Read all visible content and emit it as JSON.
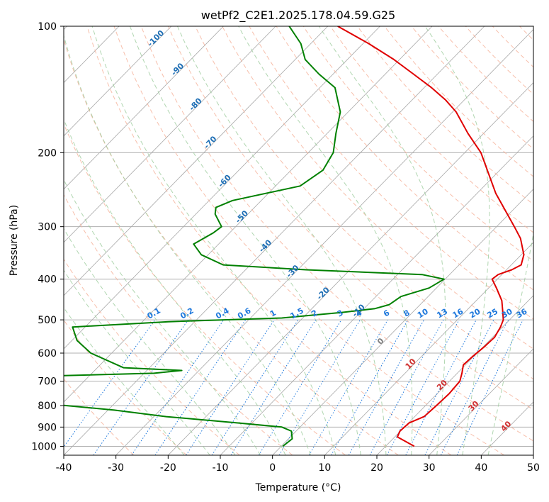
{
  "chart_data": {
    "type": "line",
    "title": "wetPf2_C2E1.2025.178.04.59.G25",
    "xlabel": "Temperature (°C)",
    "ylabel": "Pressure (hPa)",
    "xlim": [
      -40,
      50
    ],
    "ylim": [
      1050,
      100
    ],
    "y_scale": "log",
    "xticks": [
      -40,
      -30,
      -20,
      -10,
      0,
      10,
      20,
      30,
      40,
      50
    ],
    "yticks": [
      100,
      200,
      300,
      400,
      500,
      600,
      700,
      800,
      900,
      1000
    ],
    "grid": true,
    "skew": true,
    "background_lines": {
      "isotherm_labels": [
        {
          "label": "-100",
          "p": 108
        },
        {
          "label": "-90",
          "p": 128
        },
        {
          "label": "-80",
          "p": 155
        },
        {
          "label": "-70",
          "p": 191
        },
        {
          "label": "-60",
          "p": 236
        },
        {
          "label": "-50",
          "p": 287
        },
        {
          "label": "-40",
          "p": 337
        },
        {
          "label": "-30",
          "p": 387
        },
        {
          "label": "-20",
          "p": 437
        },
        {
          "label": "-10",
          "p": 480
        },
        {
          "label": "0",
          "p": 568
        },
        {
          "label": "10",
          "p": 643
        },
        {
          "label": "20",
          "p": 722
        },
        {
          "label": "30",
          "p": 810
        },
        {
          "label": "40",
          "p": 905
        }
      ],
      "mixing_ratio_labels": [
        "0.1",
        "0.2",
        "0.4",
        "0.6",
        "1",
        "1.5",
        "2",
        "3",
        "4",
        "6",
        "8",
        "10",
        "13",
        "16",
        "20",
        "25",
        "30",
        "36"
      ],
      "mixing_ratio_label_pressure": 500
    },
    "series": [
      {
        "color": "#e00000",
        "points": [
          {
            "p": 1000,
            "t": 25.5
          },
          {
            "p": 950,
            "t": 20.5
          },
          {
            "p": 920,
            "t": 19.9
          },
          {
            "p": 880,
            "t": 20.1
          },
          {
            "p": 850,
            "t": 21.8
          },
          {
            "p": 800,
            "t": 22.1
          },
          {
            "p": 750,
            "t": 22.3
          },
          {
            "p": 700,
            "t": 22.0
          },
          {
            "p": 670,
            "t": 20.9
          },
          {
            "p": 640,
            "t": 19.6
          },
          {
            "p": 610,
            "t": 19.8
          },
          {
            "p": 580,
            "t": 20.2
          },
          {
            "p": 550,
            "t": 20.4
          },
          {
            "p": 520,
            "t": 19.6
          },
          {
            "p": 500,
            "t": 18.8
          },
          {
            "p": 480,
            "t": 17.3
          },
          {
            "p": 450,
            "t": 14.9
          },
          {
            "p": 420,
            "t": 11.5
          },
          {
            "p": 400,
            "t": 9.0
          },
          {
            "p": 390,
            "t": 9.3
          },
          {
            "p": 380,
            "t": 11.0
          },
          {
            "p": 370,
            "t": 11.9
          },
          {
            "p": 350,
            "t": 10.5
          },
          {
            "p": 320,
            "t": 6.8
          },
          {
            "p": 300,
            "t": 3.4
          },
          {
            "p": 250,
            "t": -6.4
          },
          {
            "p": 200,
            "t": -16.9
          },
          {
            "p": 180,
            "t": -23.0
          },
          {
            "p": 160,
            "t": -29.3
          },
          {
            "p": 150,
            "t": -33.5
          },
          {
            "p": 140,
            "t": -38.6
          },
          {
            "p": 130,
            "t": -44.6
          },
          {
            "p": 120,
            "t": -51.1
          },
          {
            "p": 110,
            "t": -58.9
          },
          {
            "p": 100,
            "t": -68.1
          }
        ]
      },
      {
        "color": "#008000",
        "points": [
          {
            "p": 1000,
            "t": 0.3
          },
          {
            "p": 960,
            "t": 0.7
          },
          {
            "p": 920,
            "t": -0.9
          },
          {
            "p": 900,
            "t": -3.5
          },
          {
            "p": 880,
            "t": -12.5
          },
          {
            "p": 850,
            "t": -27.6
          },
          {
            "p": 820,
            "t": -38.8
          },
          {
            "p": 800,
            "t": -48.9
          },
          {
            "p": 780,
            "t": -62.6
          },
          {
            "p": 700,
            "t": -60.0
          },
          {
            "p": 680,
            "t": -57.0
          },
          {
            "p": 670,
            "t": -38.1
          },
          {
            "p": 660,
            "t": -33.3
          },
          {
            "p": 650,
            "t": -45.0
          },
          {
            "p": 600,
            "t": -54.0
          },
          {
            "p": 560,
            "t": -59.0
          },
          {
            "p": 520,
            "t": -62.4
          },
          {
            "p": 505,
            "t": -45.0
          },
          {
            "p": 495,
            "t": -24.0
          },
          {
            "p": 480,
            "t": -13.5
          },
          {
            "p": 470,
            "t": -7.9
          },
          {
            "p": 460,
            "t": -5.9
          },
          {
            "p": 440,
            "t": -5.2
          },
          {
            "p": 420,
            "t": -1.4
          },
          {
            "p": 400,
            "t": -0.2
          },
          {
            "p": 390,
            "t": -5.3
          },
          {
            "p": 380,
            "t": -28.4
          },
          {
            "p": 370,
            "t": -45.2
          },
          {
            "p": 350,
            "t": -51.3
          },
          {
            "p": 330,
            "t": -54.8
          },
          {
            "p": 310,
            "t": -53.1
          },
          {
            "p": 300,
            "t": -52.7
          },
          {
            "p": 280,
            "t": -56.3
          },
          {
            "p": 270,
            "t": -57.4
          },
          {
            "p": 260,
            "t": -55.5
          },
          {
            "p": 240,
            "t": -45.3
          },
          {
            "p": 220,
            "t": -43.9
          },
          {
            "p": 200,
            "t": -45.2
          },
          {
            "p": 180,
            "t": -48.3
          },
          {
            "p": 160,
            "t": -51.5
          },
          {
            "p": 140,
            "t": -57.1
          },
          {
            "p": 130,
            "t": -62.7
          },
          {
            "p": 120,
            "t": -68.1
          },
          {
            "p": 110,
            "t": -71.9
          },
          {
            "p": 100,
            "t": -77.4
          }
        ]
      }
    ]
  }
}
